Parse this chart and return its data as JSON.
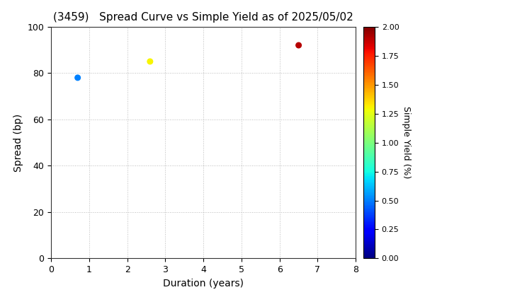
{
  "title": "(3459)   Spread Curve vs Simple Yield as of 2025/05/02",
  "xlabel": "Duration (years)",
  "ylabel": "Spread (bp)",
  "colorbar_label": "Simple Yield (%)",
  "xlim": [
    0,
    8
  ],
  "ylim": [
    0,
    100
  ],
  "xticks": [
    0,
    1,
    2,
    3,
    4,
    5,
    6,
    7,
    8
  ],
  "yticks": [
    0,
    20,
    40,
    60,
    80,
    100
  ],
  "colorbar_ticks": [
    0.0,
    0.25,
    0.5,
    0.75,
    1.0,
    1.25,
    1.5,
    1.75,
    2.0
  ],
  "colormap": "jet",
  "vmin": 0.0,
  "vmax": 2.0,
  "points": [
    {
      "duration": 0.7,
      "spread": 78,
      "simple_yield": 0.5
    },
    {
      "duration": 2.6,
      "spread": 85,
      "simple_yield": 1.3
    },
    {
      "duration": 6.5,
      "spread": 92,
      "simple_yield": 1.9
    }
  ],
  "marker_size": 30,
  "grid_color": "#bbbbbb",
  "grid_style": "dotted",
  "background_color": "#ffffff",
  "title_fontsize": 11,
  "axis_label_fontsize": 10,
  "tick_fontsize": 9,
  "colorbar_label_fontsize": 9,
  "colorbar_tick_fontsize": 8
}
